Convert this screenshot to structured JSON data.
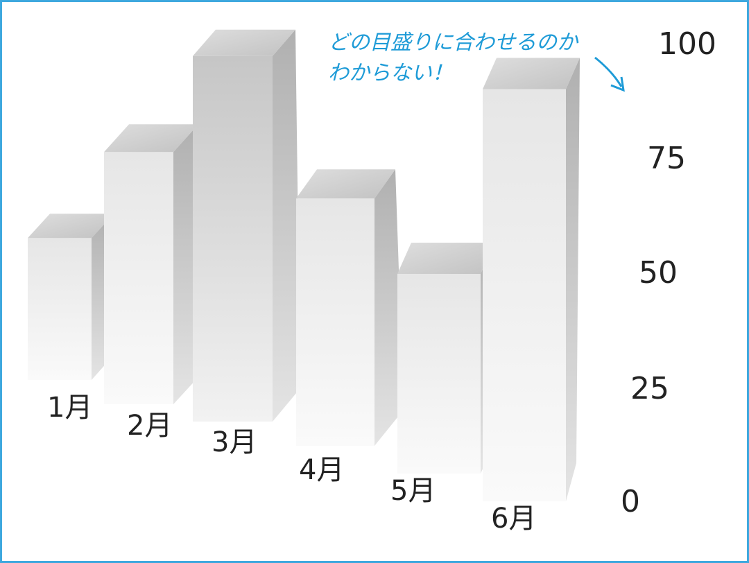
{
  "chart_data": {
    "type": "bar",
    "style": "3d-perspective",
    "categories": [
      "1月",
      "2月",
      "3月",
      "4月",
      "5月",
      "6月"
    ],
    "values": [
      45,
      68,
      95,
      58,
      40,
      82
    ],
    "yticks": [
      "0",
      "25",
      "50",
      "75",
      "100"
    ],
    "ylim": [
      0,
      100
    ],
    "grid": false,
    "annotation": {
      "lines": [
        "どの目盛りに合わせるのか",
        "わからない！"
      ],
      "color": "#1e9bd7"
    }
  },
  "colors": {
    "frame": "#3ea8de",
    "bar_face": "#ececec",
    "bar_side": "#bdbdbd",
    "bar_top": "#d0d0d0"
  }
}
